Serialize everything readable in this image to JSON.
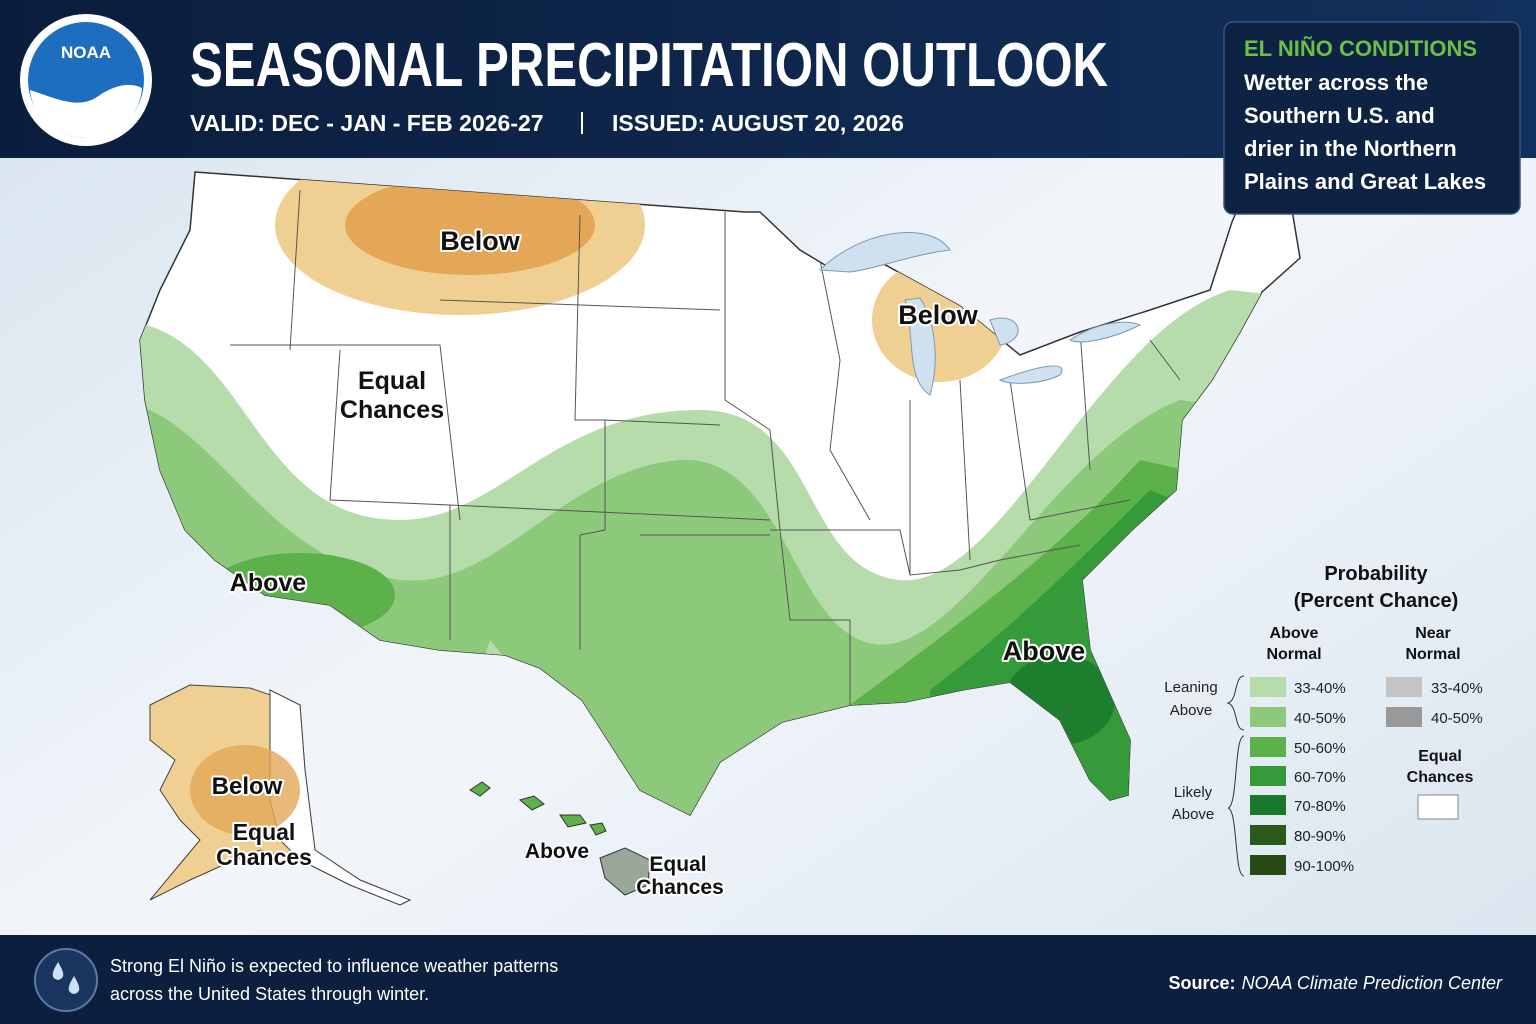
{
  "header": {
    "logo": "NOAA",
    "title": "SEASONAL PRECIPITATION OUTLOOK",
    "valid": "VALID: DEC - JAN - FEB 2026-27",
    "issued": "ISSUED: AUGUST 20, 2026"
  },
  "callout": {
    "title": "EL NIÑO CONDITIONS",
    "lines": [
      "Wetter across the",
      "Southern U.S. and",
      "drier in the Northern",
      "Plains and Great Lakes"
    ]
  },
  "map": {
    "labels": {
      "plains_below": "Below",
      "lakes_below": "Below",
      "west_equal": [
        "Equal",
        "Chances"
      ],
      "southwest_above": "Above",
      "southeast_above": "Above",
      "alaska_below": "Below",
      "alaska_equal": [
        "Equal",
        "Chances"
      ],
      "hawaii_above": "Above",
      "hawaii_equal": [
        "Equal",
        "Chances"
      ]
    }
  },
  "legend": {
    "title": [
      "Probability",
      "(Percent Chance)"
    ],
    "above_header": [
      "Above",
      "Normal"
    ],
    "near_header": [
      "Near",
      "Normal"
    ],
    "leaning": [
      "Leaning",
      "Above"
    ],
    "likely": [
      "Likely",
      "Above"
    ],
    "above_items": [
      {
        "label": "33-40%",
        "color": "#b5dcaa"
      },
      {
        "label": "40-50%",
        "color": "#8cc97a"
      },
      {
        "label": "50-60%",
        "color": "#5cb14a"
      },
      {
        "label": "60-70%",
        "color": "#349a3a"
      },
      {
        "label": "70-80%",
        "color": "#18772a"
      },
      {
        "label": "80-90%",
        "color": "#2a5a1a"
      },
      {
        "label": "90-100%",
        "color": "#264a14"
      }
    ],
    "near_items": [
      {
        "label": "33-40%",
        "color": "#c4c4c4"
      },
      {
        "label": "40-50%",
        "color": "#999999"
      }
    ],
    "equal": [
      "Equal",
      "Chances"
    ],
    "equal_color": "#ffffff"
  },
  "footer": {
    "note": [
      "Strong El Niño is expected to influence weather patterns",
      "across the United States through winter."
    ],
    "source_label": "Source:",
    "source": "NOAA Climate Prediction Center"
  }
}
